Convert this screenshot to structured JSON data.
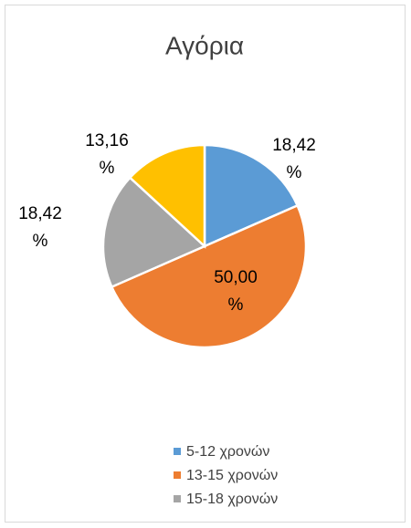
{
  "chart_data": {
    "type": "pie",
    "title": "Αγόρια",
    "categories": [
      "5-12 χρονών",
      "13-15 χρονών",
      "15-18 χρονών",
      null
    ],
    "values": [
      18.42,
      50.0,
      18.42,
      13.16
    ],
    "value_labels": [
      "18,42 %",
      "50,00 %",
      "18,42 %",
      "13,16 %"
    ],
    "colors": [
      "#5b9bd5",
      "#ed7d31",
      "#a5a5a5",
      "#ffc000"
    ],
    "legend": "bottom"
  }
}
